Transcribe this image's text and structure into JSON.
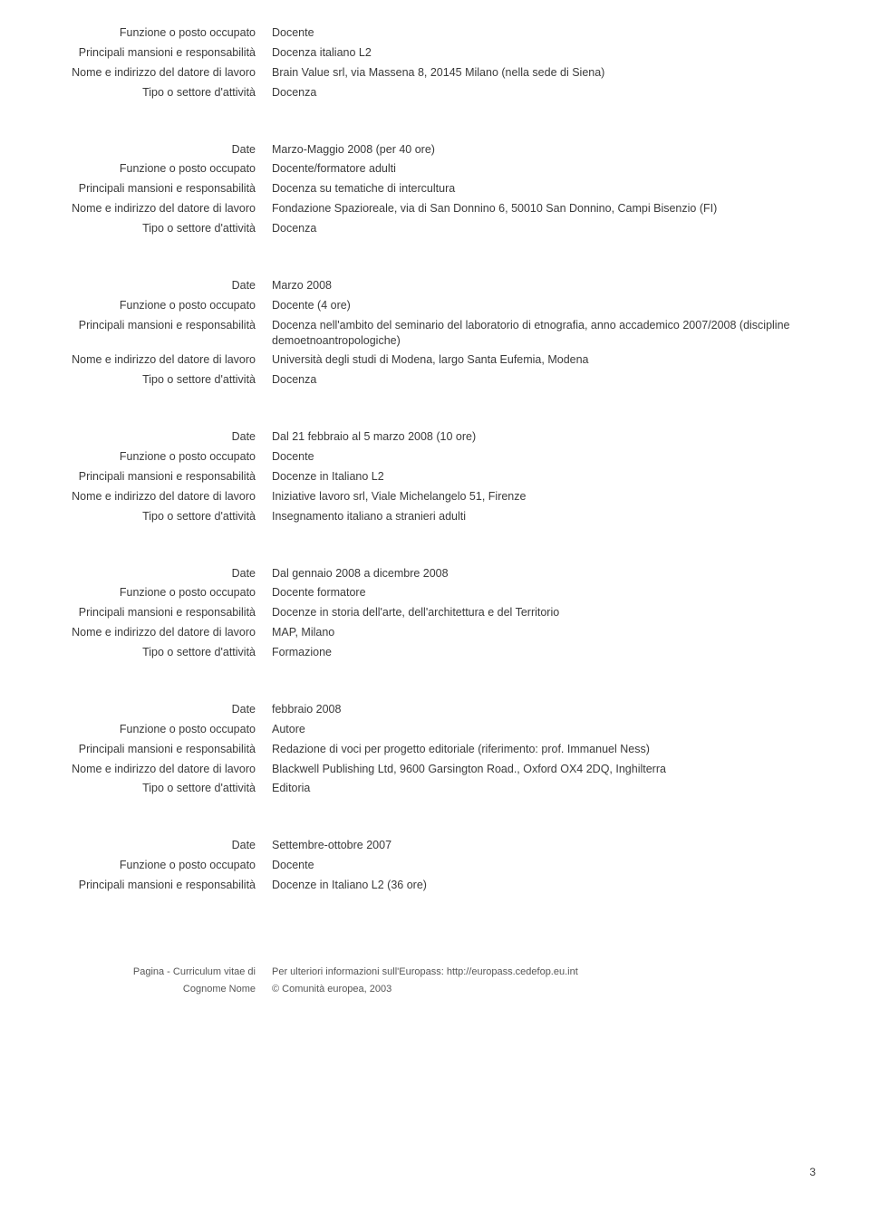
{
  "labels": {
    "date": "Date",
    "funzione": "Funzione o posto occupato",
    "mansioni": "Principali mansioni e responsabilità",
    "datore": "Nome e indirizzo del datore di lavoro",
    "settore": "Tipo o settore d'attività"
  },
  "entries": [
    {
      "funzione": "Docente",
      "mansioni": "Docenza italiano L2",
      "datore": "Brain Value srl, via Massena 8, 20145 Milano (nella sede di Siena)",
      "settore": "Docenza",
      "hasDate": false
    },
    {
      "date": "Marzo-Maggio 2008 (per 40 ore)",
      "funzione": "Docente/formatore adulti",
      "mansioni": "Docenza su tematiche di intercultura",
      "datore": "Fondazione Spazioreale, via di San Donnino 6, 50010 San Donnino, Campi Bisenzio (FI)",
      "settore": "Docenza",
      "hasDate": true
    },
    {
      "date": "Marzo 2008",
      "funzione": "Docente (4 ore)",
      "mansioni": "Docenza nell'ambito del seminario del laboratorio di etnografia, anno accademico 2007/2008 (discipline demoetnoantropologiche)",
      "datore": "Università degli studi di Modena, largo Santa Eufemia, Modena",
      "settore": "Docenza",
      "hasDate": true
    },
    {
      "date": "Dal 21 febbraio al 5 marzo 2008 (10 ore)",
      "funzione": "Docente",
      "mansioni": "Docenze in Italiano L2",
      "datore": "Iniziative lavoro srl, Viale Michelangelo 51, Firenze",
      "settore": "Insegnamento italiano a stranieri adulti",
      "hasDate": true
    },
    {
      "date": "Dal gennaio 2008 a dicembre 2008",
      "funzione": "Docente formatore",
      "mansioni": "Docenze in storia dell'arte, dell'architettura e del Territorio",
      "datore": "MAP, Milano",
      "settore": "Formazione",
      "hasDate": true
    },
    {
      "date": "febbraio 2008",
      "funzione": "Autore",
      "mansioni": "Redazione di voci per progetto editoriale (riferimento: prof. Immanuel Ness)",
      "datore": "Blackwell Publishing Ltd, 9600 Garsington Road., Oxford OX4 2DQ, Inghilterra",
      "settore": "Editoria",
      "hasDate": true,
      "extraGap": true
    },
    {
      "date": "Settembre-ottobre 2007",
      "funzione": "Docente",
      "mansioni": "Docenze in Italiano L2 (36 ore)",
      "hasDate": true,
      "partial": true
    }
  ],
  "footer": {
    "left1": "Pagina - Curriculum vitae di",
    "left2": "Cognome Nome",
    "right1": "Per ulteriori informazioni sull'Europass: http://europass.cedefop.eu.int",
    "right2": "© Comunità europea, 2003"
  },
  "pageNumber": "3"
}
